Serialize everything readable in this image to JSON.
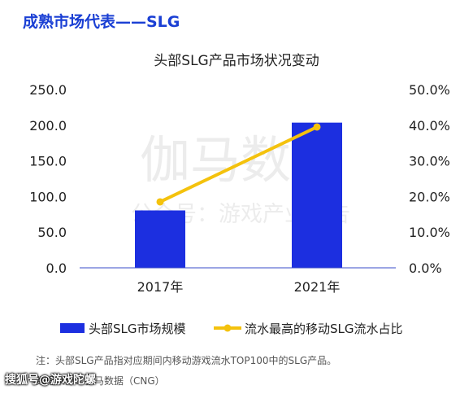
{
  "heading": "成熟市场代表——SLG",
  "watermark": {
    "line1": "伽马数据",
    "line2": "公众号：游戏产业报告"
  },
  "note": "注：头部SLG产品指对应期间内移动游戏流水TOP100中的SLG产品。",
  "source": "数据来源：伽马数据（CNG）",
  "footer": "搜狐号@游戏陀螺",
  "colors": {
    "bar": "#1c2fe0",
    "line": "#f4c20d",
    "heading": "#1a3fd4"
  },
  "chart_data": {
    "type": "bar",
    "title": "头部SLG产品市场状况变动",
    "categories": [
      "2017年",
      "2021年"
    ],
    "series": [
      {
        "name": "头部SLG市场规模",
        "type": "bar",
        "axis": "left",
        "values": [
          80.5,
          203.6
        ]
      },
      {
        "name": "流水最高的移动SLG流水占比",
        "type": "line",
        "axis": "right",
        "values": [
          18.5,
          39.5
        ]
      }
    ],
    "y_left": {
      "min": 0,
      "max": 250,
      "ticks": [
        "0.0",
        "50.0",
        "100.0",
        "150.0",
        "200.0",
        "250.0"
      ]
    },
    "y_right": {
      "min": 0,
      "max": 50,
      "ticks": [
        "0.0%",
        "10.0%",
        "20.0%",
        "30.0%",
        "40.0%",
        "50.0%"
      ]
    },
    "grid": false,
    "legend_position": "bottom"
  }
}
